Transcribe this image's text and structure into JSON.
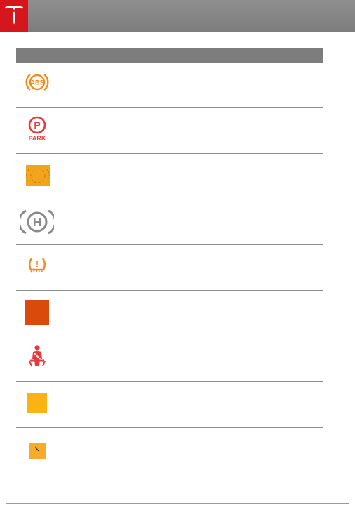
{
  "header": {
    "logo": "tesla-logo-icon",
    "brand_color": "#d5161c"
  },
  "table": {
    "col_icon_header": "",
    "col_desc_header": "",
    "rows": [
      {
        "icon": "abs-warning-icon",
        "icon_label": "ABS",
        "color": "#f08c1a",
        "description": ""
      },
      {
        "icon": "park-brake-icon",
        "icon_label": "P",
        "icon_sublabel": "PARK",
        "color": "#e8393f",
        "description": ""
      },
      {
        "icon": "brake-fault-icon",
        "color": "#f2a51c",
        "description": ""
      },
      {
        "icon": "vehicle-hold-icon",
        "icon_label": "H",
        "color": "#8a8a8a",
        "description": ""
      },
      {
        "icon": "tire-pressure-icon",
        "icon_label": "!",
        "color": "#f08c1a",
        "description": ""
      },
      {
        "icon": "red-warning-square-icon",
        "color": "#d94a0b",
        "description": ""
      },
      {
        "icon": "seatbelt-icon",
        "color": "#e8393f",
        "description": ""
      },
      {
        "icon": "amber-warning-square-icon",
        "color": "#f9b414",
        "description": ""
      },
      {
        "icon": "amber-slash-square-icon",
        "color": "#f5ac2b",
        "description": ""
      }
    ]
  }
}
